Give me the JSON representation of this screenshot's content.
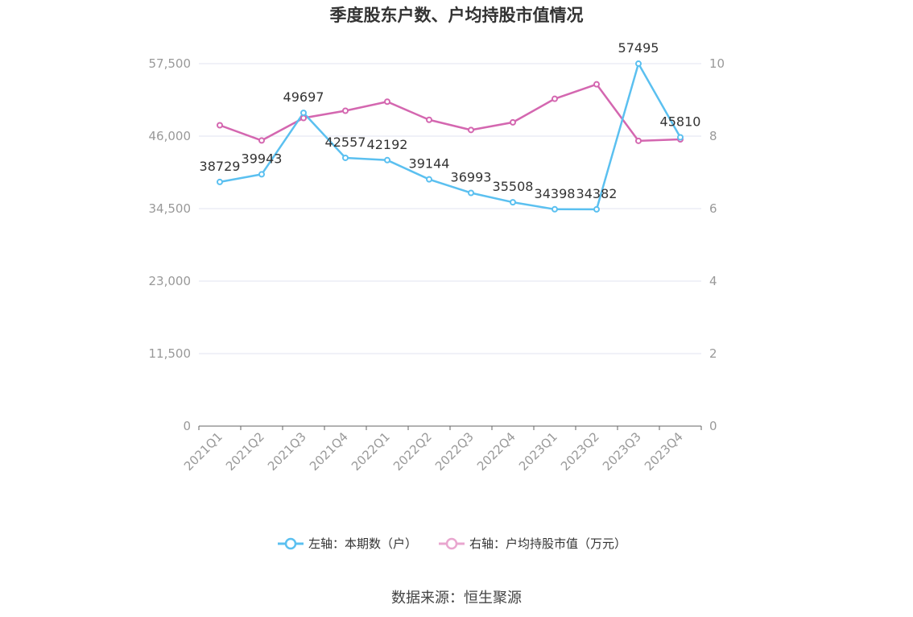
{
  "title": "季度股东户数、户均持股市值情况",
  "source": "数据来源：恒生聚源",
  "legend": {
    "left_label": "左轴：本期数（户）",
    "right_label": "右轴：户均持股市值（万元）"
  },
  "colors": {
    "left_series": "#5bc0f0",
    "right_series": "#d467b0",
    "legend_right": "#e9a6cf",
    "grid": "#e0e3f0",
    "axis_text": "#999999"
  },
  "chart_data": {
    "type": "line",
    "categories": [
      "2021Q1",
      "2021Q2",
      "2021Q3",
      "2021Q4",
      "2022Q1",
      "2022Q2",
      "2022Q3",
      "2022Q4",
      "2023Q1",
      "2023Q2",
      "2023Q3",
      "2023Q4"
    ],
    "series": [
      {
        "name": "左轴：本期数（户）",
        "axis": "left",
        "values": [
          38729,
          39943,
          49697,
          42557,
          42192,
          39144,
          36993,
          35508,
          34398,
          34382,
          57495,
          45810
        ],
        "data_labels": [
          "38729",
          "39943",
          "49697",
          "42557",
          "42192",
          "39144",
          "36993",
          "35508",
          "34398",
          "34382",
          "57495",
          "45810"
        ]
      },
      {
        "name": "右轴：户均持股市值（万元）",
        "axis": "right",
        "values": [
          8.3,
          7.88,
          8.5,
          8.7,
          8.95,
          8.45,
          8.17,
          8.38,
          9.03,
          9.43,
          7.87,
          7.91
        ]
      }
    ],
    "y_left": {
      "range": [
        0,
        57500
      ],
      "ticks": [
        "0",
        "11,500",
        "23,000",
        "34,500",
        "46,000",
        "57,500"
      ]
    },
    "y_right": {
      "range": [
        0,
        10
      ],
      "ticks": [
        "0",
        "2",
        "4",
        "6",
        "8",
        "10"
      ]
    },
    "grid": true,
    "legend_position": "bottom"
  }
}
